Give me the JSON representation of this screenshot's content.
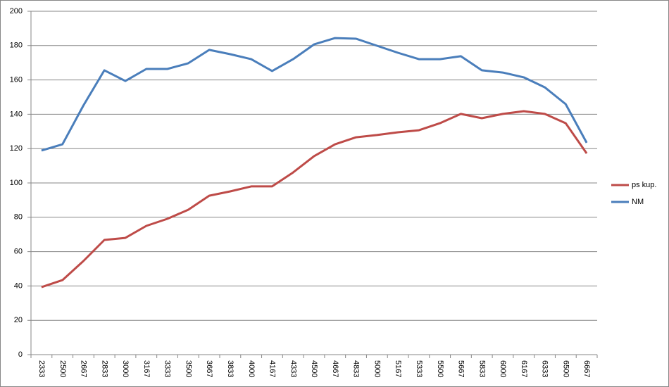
{
  "chart_data": {
    "type": "line",
    "categories": [
      "2333",
      "2500",
      "2667",
      "2833",
      "3000",
      "3167",
      "3333",
      "3500",
      "3667",
      "3833",
      "4000",
      "4167",
      "4333",
      "4500",
      "4667",
      "4833",
      "5000",
      "5167",
      "5333",
      "5500",
      "5667",
      "5833",
      "6000",
      "6167",
      "6333",
      "6500",
      "6667"
    ],
    "series": [
      {
        "name": "ps kup.",
        "color": "#be4b48",
        "values": [
          39.3,
          43.4,
          54.5,
          66.8,
          68,
          75,
          79.1,
          84.4,
          92.6,
          95.1,
          98,
          98,
          106.1,
          115.6,
          122.5,
          126.6,
          127.9,
          129.5,
          130.7,
          134.8,
          140.2,
          137.7,
          140.2,
          141.8,
          140.2,
          134.8,
          117.2
        ]
      },
      {
        "name": "NM",
        "color": "#4a7ebb",
        "values": [
          118.9,
          122.5,
          145.1,
          165.6,
          159.4,
          166.4,
          166.4,
          169.7,
          177.5,
          175,
          172.1,
          165.2,
          172.1,
          180.7,
          184.4,
          184,
          179.9,
          175.8,
          172.1,
          172.1,
          173.8,
          165.6,
          164.3,
          161.5,
          155.7,
          145.9,
          123.4
        ]
      }
    ],
    "ylim": [
      0,
      200
    ],
    "yticks": [
      0,
      20,
      40,
      60,
      80,
      100,
      120,
      140,
      160,
      180,
      200
    ],
    "grid": true,
    "legend": "right"
  }
}
